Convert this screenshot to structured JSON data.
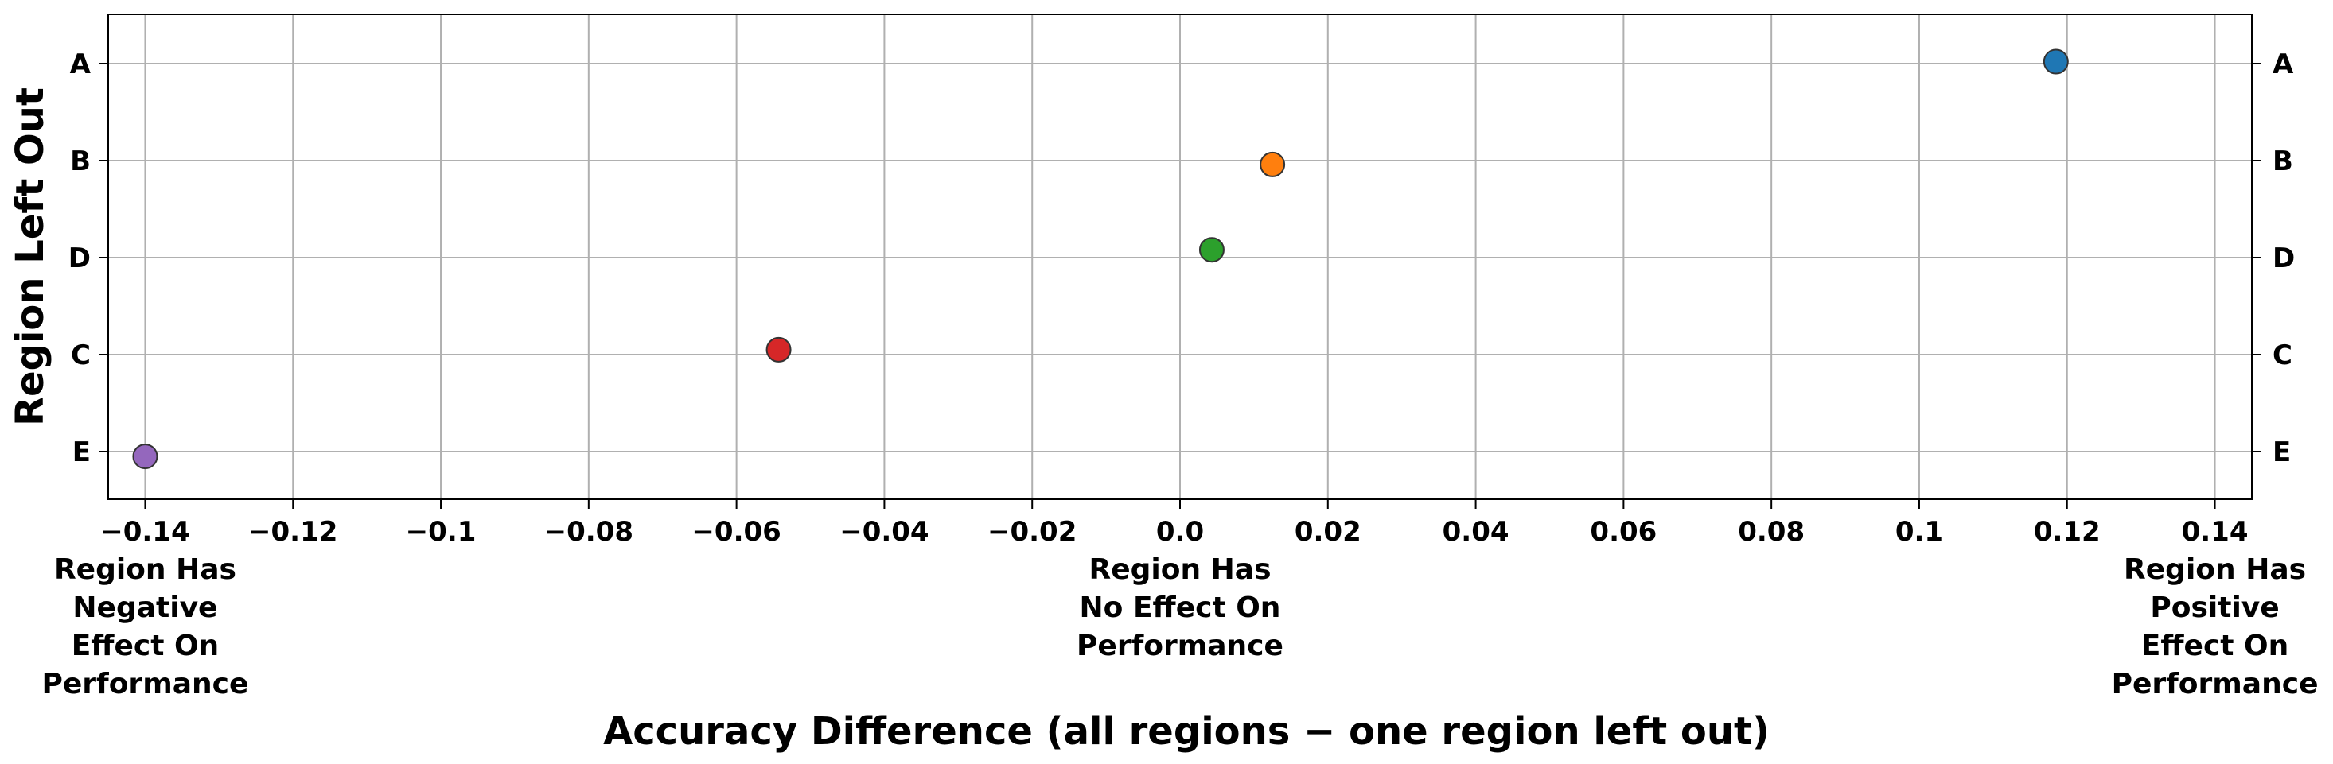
{
  "chart_data": {
    "type": "scatter",
    "title": "",
    "xlabel": "Accuracy Difference (all regions − one region left out)",
    "ylabel": "Region Left Out",
    "xlim": [
      -0.145,
      0.145
    ],
    "x_ticks": [
      -0.14,
      -0.12,
      -0.1,
      -0.08,
      -0.06,
      -0.04,
      -0.02,
      0.0,
      0.02,
      0.04,
      0.06,
      0.08,
      0.1,
      0.12,
      0.14
    ],
    "x_tick_labels": [
      "−0.14",
      "−0.12",
      "−0.1",
      "−0.08",
      "−0.06",
      "−0.04",
      "−0.02",
      "0.0",
      "0.02",
      "0.04",
      "0.06",
      "0.08",
      "0.1",
      "0.12",
      "0.14"
    ],
    "categories": [
      "A",
      "B",
      "D",
      "C",
      "E"
    ],
    "grid": true,
    "right_axis_labels": true,
    "points": [
      {
        "category": "A",
        "x": 0.1185,
        "y_offset": -0.02,
        "color": "#1f77b4"
      },
      {
        "category": "B",
        "x": 0.0125,
        "y_offset": 0.04,
        "color": "#ff7f0e"
      },
      {
        "category": "D",
        "x": 0.0043,
        "y_offset": -0.08,
        "color": "#2ca02c"
      },
      {
        "category": "C",
        "x": -0.0543,
        "y_offset": -0.05,
        "color": "#d62728"
      },
      {
        "category": "E",
        "x": -0.14,
        "y_offset": 0.05,
        "color": "#9467bd"
      }
    ],
    "annotations": [
      {
        "anchor_x": -0.14,
        "lines": [
          "Region Has",
          "Negative",
          "Effect On",
          "Performance"
        ]
      },
      {
        "anchor_x": 0.0,
        "lines": [
          "Region Has",
          "No Effect On",
          "Performance"
        ]
      },
      {
        "anchor_x": 0.14,
        "lines": [
          "Region Has",
          "Positive",
          "Effect On",
          "Performance"
        ]
      }
    ]
  }
}
